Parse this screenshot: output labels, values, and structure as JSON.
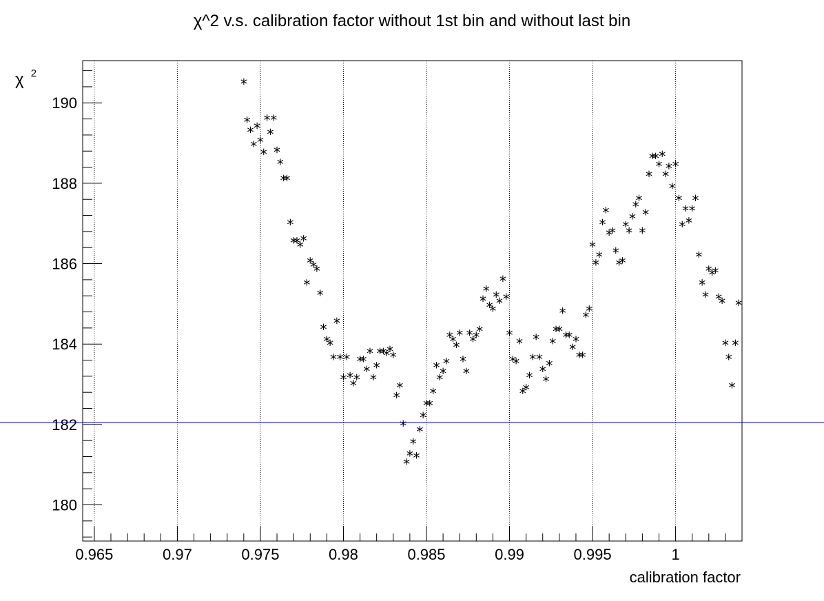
{
  "chart_data": {
    "type": "scatter",
    "title": "χ^2 v.s. calibration factor without 1st bin and without last bin",
    "xlabel": "calibration factor",
    "ylabel_base": "χ",
    "ylabel_sup": "2",
    "xlim": [
      0.9643,
      1.004
    ],
    "ylim": [
      179.1,
      191.05
    ],
    "xticks": [
      0.965,
      0.97,
      0.975,
      0.98,
      0.985,
      0.99,
      0.995,
      1.0
    ],
    "xtick_labels": [
      "0.965",
      "0.97",
      "0.975",
      "0.98",
      "0.985",
      "0.99",
      "0.995",
      "1"
    ],
    "yticks": [
      180,
      182,
      184,
      186,
      188,
      190
    ],
    "ytick_labels": [
      "180",
      "182",
      "184",
      "186",
      "188",
      "190"
    ],
    "grid": "vertical-dotted",
    "marker": "*",
    "reference_line": {
      "y": 182.05,
      "color": "#0000cc"
    },
    "x": [
      0.974,
      0.9742,
      0.9744,
      0.9746,
      0.9748,
      0.975,
      0.9752,
      0.9754,
      0.9756,
      0.9758,
      0.976,
      0.9762,
      0.9764,
      0.9766,
      0.9768,
      0.977,
      0.9772,
      0.9774,
      0.9776,
      0.9778,
      0.978,
      0.9782,
      0.9784,
      0.9786,
      0.9788,
      0.979,
      0.9792,
      0.9794,
      0.9796,
      0.9798,
      0.98,
      0.9802,
      0.9804,
      0.9806,
      0.9808,
      0.981,
      0.9812,
      0.9814,
      0.9816,
      0.9818,
      0.982,
      0.9822,
      0.9824,
      0.9826,
      0.9828,
      0.983,
      0.9832,
      0.9834,
      0.9836,
      0.9838,
      0.984,
      0.9842,
      0.9844,
      0.9846,
      0.9848,
      0.985,
      0.9852,
      0.9854,
      0.9856,
      0.9858,
      0.986,
      0.9862,
      0.9864,
      0.9866,
      0.9868,
      0.987,
      0.9872,
      0.9874,
      0.9876,
      0.9878,
      0.988,
      0.9882,
      0.9884,
      0.9886,
      0.9888,
      0.989,
      0.9892,
      0.9894,
      0.9896,
      0.9898,
      0.99,
      0.9902,
      0.9904,
      0.9906,
      0.9908,
      0.991,
      0.9912,
      0.9914,
      0.9916,
      0.9918,
      0.992,
      0.9922,
      0.9924,
      0.9926,
      0.9928,
      0.993,
      0.9932,
      0.9934,
      0.9936,
      0.9938,
      0.994,
      0.9942,
      0.9944,
      0.9946,
      0.9948,
      0.995,
      0.9952,
      0.9954,
      0.9956,
      0.9958,
      0.996,
      0.9962,
      0.9964,
      0.9966,
      0.9968,
      0.997,
      0.9972,
      0.9974,
      0.9976,
      0.9978,
      0.998,
      0.9982,
      0.9984,
      0.9986,
      0.9988,
      0.999,
      0.9992,
      0.9994,
      0.9996,
      0.9998,
      1.0,
      1.0002,
      1.0004,
      1.0006,
      1.0008,
      1.001,
      1.0012,
      1.0014,
      1.0016,
      1.0018,
      1.002,
      1.0022,
      1.0024,
      1.0026,
      1.0028,
      1.003,
      1.0032,
      1.0034,
      1.0036,
      1.0038
    ],
    "y": [
      190.5,
      189.55,
      189.3,
      188.95,
      189.4,
      189.05,
      188.75,
      189.6,
      189.25,
      189.6,
      188.8,
      188.5,
      188.1,
      188.1,
      187.0,
      186.55,
      186.55,
      186.45,
      186.6,
      185.5,
      186.05,
      185.95,
      185.85,
      185.25,
      184.4,
      184.1,
      184.0,
      183.65,
      184.55,
      183.65,
      183.15,
      183.65,
      183.2,
      183.0,
      183.15,
      183.6,
      183.6,
      183.35,
      183.8,
      183.15,
      183.45,
      183.8,
      183.8,
      183.75,
      183.85,
      183.7,
      182.7,
      182.95,
      182.0,
      181.05,
      181.25,
      181.55,
      181.2,
      181.85,
      182.2,
      182.5,
      182.5,
      182.8,
      183.45,
      183.15,
      183.3,
      183.55,
      184.2,
      184.1,
      183.95,
      184.25,
      183.6,
      183.3,
      184.25,
      184.1,
      184.2,
      184.35,
      185.1,
      185.35,
      184.95,
      184.85,
      185.2,
      185.05,
      185.6,
      185.15,
      184.25,
      183.6,
      183.55,
      184.05,
      182.8,
      182.9,
      183.2,
      183.65,
      184.15,
      183.65,
      183.35,
      183.1,
      183.5,
      184.05,
      184.35,
      184.35,
      184.8,
      184.2,
      184.2,
      183.9,
      184.1,
      183.7,
      183.7,
      184.7,
      184.85,
      186.45,
      186.0,
      186.2,
      187.0,
      187.3,
      186.75,
      186.8,
      186.3,
      186.0,
      186.05,
      186.95,
      186.8,
      187.15,
      187.45,
      187.6,
      186.8,
      187.25,
      188.2,
      188.65,
      188.65,
      188.45,
      188.7,
      188.2,
      188.4,
      187.9,
      188.45,
      187.6,
      186.95,
      187.35,
      187.05,
      187.35,
      187.6,
      186.2,
      185.5,
      185.2,
      185.85,
      185.75,
      185.8,
      185.15,
      185.05,
      184.0,
      183.65,
      182.95,
      184.0,
      185.0
    ]
  }
}
